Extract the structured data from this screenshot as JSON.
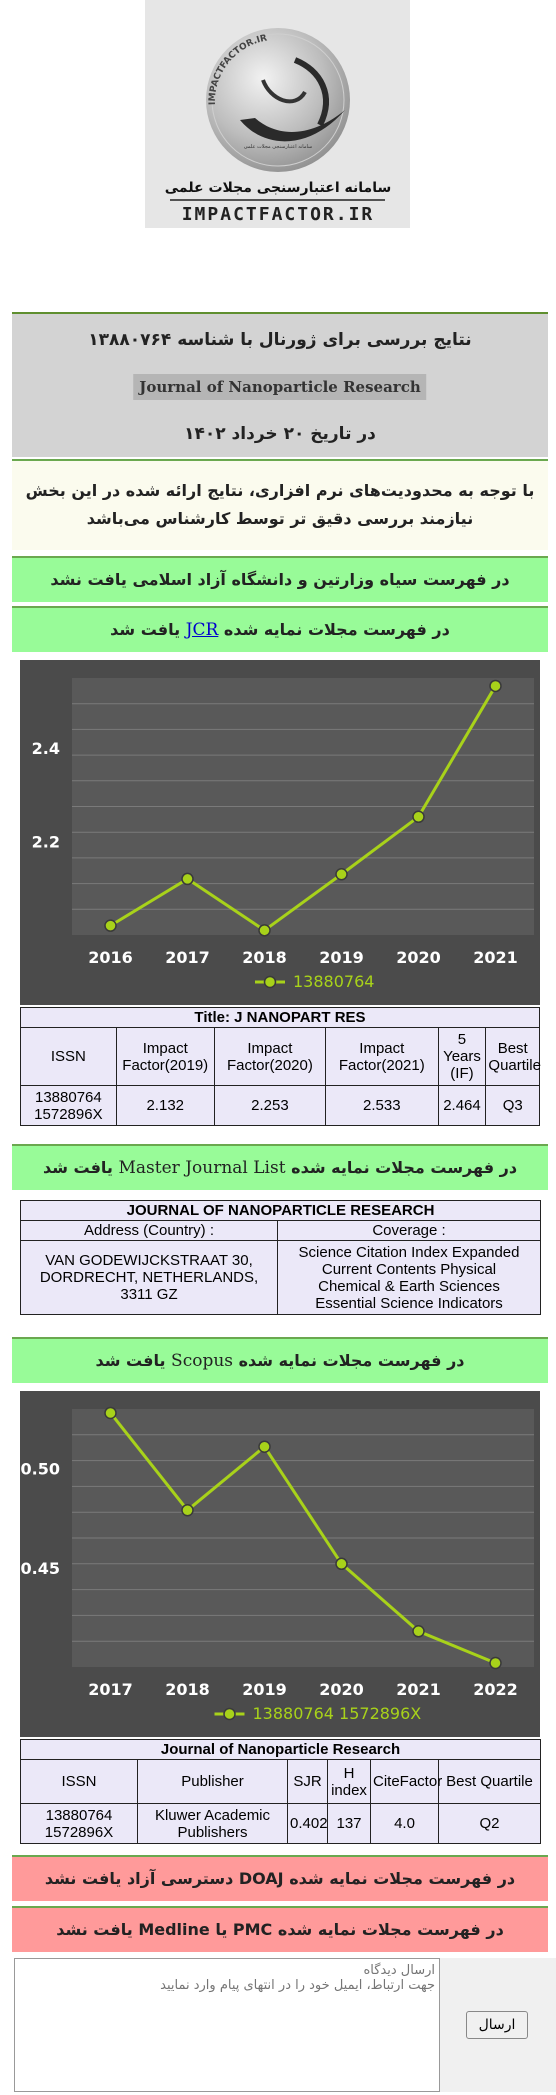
{
  "logo": {
    "circle_text": "IMPACTFACTOR.IR",
    "persian_name": "سامانه اعتبارسنجی مجلات علمی",
    "domain_text": "IMPACTFACTOR.IR"
  },
  "header": {
    "title_line": "نتایج بررسی برای ژورنال با شناسه ۱۳۸۸۰۷۶۴",
    "journal_name": "Journal of Nanoparticle Research",
    "date_line": "در تاریخ ۲۰ خرداد ۱۴۰۲"
  },
  "warning": {
    "line1": "با توجه به محدودیت‌های نرم افزاری، نتایج ارائه شده در این بخش",
    "line2": "نیازمند بررسی دقیق تر توسط کارشناس می‌باشد"
  },
  "blacklist": {
    "text": "در فهرست سیاه وزارتین و دانشگاه آزاد اسلامی یافت نشد"
  },
  "jcr": {
    "prefix": "در فهرست مجلات نمایه شده",
    "link": "JCR",
    "suffix": "یافت شد",
    "table_title": "Title: J NANOPART RES",
    "headers": [
      "ISSN",
      "Impact Factor(2019)",
      "Impact Factor(2020)",
      "Impact Factor(2021)",
      "5 Years (IF)",
      "Best Quartile"
    ],
    "row": {
      "issn1": "13880764",
      "issn2": "1572896X",
      "if2019": "2.132",
      "if2020": "2.253",
      "if2021": "2.533",
      "if5y": "2.464",
      "quartile": "Q3"
    }
  },
  "master": {
    "prefix": "در فهرست مجلات نمایه شده",
    "name": "Master Journal List",
    "suffix": "یافت شد",
    "table_title": "JOURNAL OF NANOPARTICLE RESEARCH",
    "address_header": "Address (Country) :",
    "coverage_header": "Coverage :",
    "address_line1": "VAN GODEWIJCKSTRAAT 30,",
    "address_line2": "DORDRECHT, NETHERLANDS,",
    "address_line3": "3311 GZ",
    "coverage1": "Science Citation Index Expanded",
    "coverage2": "Current Contents Physical",
    "coverage3": "Chemical & Earth Sciences",
    "coverage4": "Essential Science Indicators"
  },
  "scopus": {
    "prefix": "در فهرست مجلات نمایه شده",
    "name": "Scopus",
    "suffix": "یافت شد",
    "table_title": "Journal of Nanoparticle Research",
    "headers": [
      "ISSN",
      "Publisher",
      "SJR",
      "H index",
      "CiteFactor",
      "Best Quartile"
    ],
    "row": {
      "issn1": "13880764",
      "issn2": "1572896X",
      "publisher1": "Kluwer Academic",
      "publisher2": "Publishers",
      "sjr": "0.402",
      "hindex": "137",
      "citefactor": "4.0",
      "quartile": "Q2"
    }
  },
  "doaj": {
    "text": "در فهرست مجلات نمایه شده DOAJ دسترسی آزاد یافت نشد"
  },
  "medline": {
    "text": "در فهرست مجلات نمایه شده PMC یا Medline یافت نشد"
  },
  "comment": {
    "placeholder": "ارسال دیدگاه\nجهت ارتباط، ایمیل خود را در انتهای پیام وارد نمایید",
    "send_label": "ارسال"
  },
  "colors": {
    "line": "#a8d21a",
    "chart_bg": "#4b4b4b",
    "plot_bg": "#595959",
    "grid": "#7a7a7a"
  },
  "chart_data": [
    {
      "type": "line",
      "x": [
        2016,
        2017,
        2018,
        2019,
        2020,
        2021
      ],
      "series": [
        {
          "name": "13880764",
          "values": [
            2.02,
            2.12,
            2.01,
            2.13,
            2.253,
            2.533
          ]
        }
      ],
      "y_ticks": [
        2.2,
        2.4
      ],
      "ylim": [
        2.0,
        2.55
      ],
      "legend": "bottom",
      "grid": true
    },
    {
      "type": "line",
      "x": [
        2017,
        2018,
        2019,
        2020,
        2021,
        2022
      ],
      "series": [
        {
          "name": "13880764 1572896X",
          "values": [
            0.528,
            0.479,
            0.511,
            0.452,
            0.418,
            0.402
          ]
        }
      ],
      "y_ticks": [
        0.45,
        0.5
      ],
      "ylim": [
        0.4,
        0.53
      ],
      "legend": "bottom",
      "grid": true
    }
  ]
}
